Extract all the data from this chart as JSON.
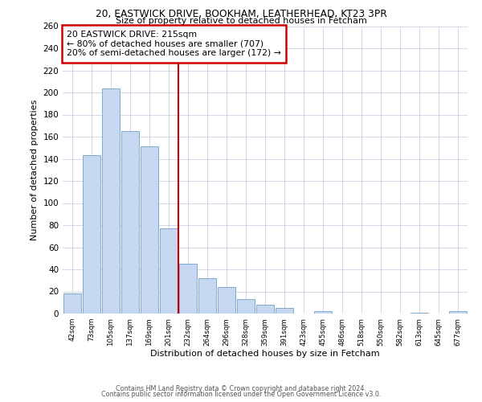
{
  "title1": "20, EASTWICK DRIVE, BOOKHAM, LEATHERHEAD, KT23 3PR",
  "title2": "Size of property relative to detached houses in Fetcham",
  "xlabel": "Distribution of detached houses by size in Fetcham",
  "ylabel": "Number of detached properties",
  "bin_labels": [
    "42sqm",
    "73sqm",
    "105sqm",
    "137sqm",
    "169sqm",
    "201sqm",
    "232sqm",
    "264sqm",
    "296sqm",
    "328sqm",
    "359sqm",
    "391sqm",
    "423sqm",
    "455sqm",
    "486sqm",
    "518sqm",
    "550sqm",
    "582sqm",
    "613sqm",
    "645sqm",
    "677sqm"
  ],
  "bar_heights": [
    18,
    143,
    204,
    165,
    151,
    77,
    45,
    32,
    24,
    13,
    8,
    5,
    0,
    2,
    0,
    0,
    0,
    0,
    1,
    0,
    2
  ],
  "bar_color": "#c5d8f0",
  "bar_edge_color": "#6fa0c8",
  "vline_x": 5.5,
  "vline_color": "#cc0000",
  "annotation_title": "20 EASTWICK DRIVE: 215sqm",
  "annotation_line1": "← 80% of detached houses are smaller (707)",
  "annotation_line2": "20% of semi-detached houses are larger (172) →",
  "annotation_box_color": "#ffffff",
  "annotation_box_edge": "#cc0000",
  "ylim": [
    0,
    260
  ],
  "yticks": [
    0,
    20,
    40,
    60,
    80,
    100,
    120,
    140,
    160,
    180,
    200,
    220,
    240,
    260
  ],
  "footer1": "Contains HM Land Registry data © Crown copyright and database right 2024.",
  "footer2": "Contains public sector information licensed under the Open Government Licence v3.0.",
  "bg_color": "#ffffff",
  "grid_color": "#d0d8e8"
}
